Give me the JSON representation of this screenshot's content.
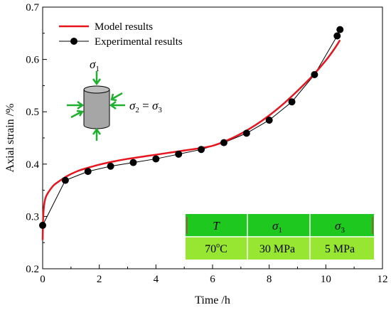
{
  "chart_data": {
    "type": "line",
    "xlabel": "Time /h",
    "ylabel": "Axial strain /%",
    "xlim": [
      0,
      12
    ],
    "ylim": [
      0.2,
      0.7
    ],
    "xticks": [
      "0",
      "2",
      "4",
      "6",
      "8",
      "10",
      "12"
    ],
    "yticks": [
      "0.2",
      "0.3",
      "0.4",
      "0.5",
      "0.6",
      "0.7"
    ],
    "legend_position": "top-left",
    "grid": false,
    "series": [
      {
        "name": "Model results",
        "color": "#e8141e",
        "style": "line",
        "x": [
          0.0,
          0.02,
          0.06,
          0.12,
          0.25,
          0.4,
          0.6,
          0.8,
          1.0,
          1.3,
          1.6,
          2.0,
          2.5,
          3.0,
          3.5,
          4.0,
          4.5,
          5.0,
          5.5,
          6.0,
          6.5,
          7.0,
          7.5,
          8.0,
          8.5,
          9.0,
          9.5,
          10.0,
          10.3,
          10.5
        ],
        "y": [
          0.255,
          0.3,
          0.325,
          0.338,
          0.35,
          0.36,
          0.368,
          0.375,
          0.381,
          0.388,
          0.393,
          0.399,
          0.405,
          0.41,
          0.414,
          0.418,
          0.422,
          0.426,
          0.43,
          0.435,
          0.445,
          0.458,
          0.474,
          0.493,
          0.515,
          0.54,
          0.567,
          0.598,
          0.62,
          0.637
        ]
      },
      {
        "name": "Experimental results",
        "color": "#000000",
        "style": "line+marker",
        "x": [
          0.0,
          0.8,
          1.6,
          2.4,
          3.2,
          4.0,
          4.8,
          5.6,
          6.4,
          7.2,
          8.0,
          8.8,
          9.6,
          10.4,
          10.5
        ],
        "y": [
          0.283,
          0.369,
          0.386,
          0.396,
          0.403,
          0.41,
          0.419,
          0.428,
          0.441,
          0.459,
          0.484,
          0.519,
          0.571,
          0.645,
          0.657
        ]
      }
    ]
  },
  "inset": {
    "sigma1": "σ",
    "sigma1_sub": "1",
    "sigma2": "σ",
    "sigma2_sub": "2",
    "equals": " = ",
    "sigma3": "σ",
    "sigma3_sub": "3"
  },
  "table": {
    "headers": [
      {
        "main": "T",
        "sub": ""
      },
      {
        "main": "σ",
        "sub": "1"
      },
      {
        "main": "σ",
        "sub": "3"
      }
    ],
    "values": [
      {
        "main": "70",
        "sup": "o",
        "tail": "C"
      },
      {
        "main": "30 MPa",
        "sup": "",
        "tail": ""
      },
      {
        "main": "5 MPa",
        "sup": "",
        "tail": ""
      }
    ],
    "header_color": "#1ec81e",
    "value_color": "#96e632"
  }
}
